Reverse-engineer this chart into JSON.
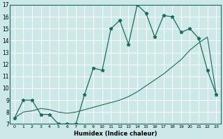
{
  "title": "",
  "xlabel": "Humidex (Indice chaleur)",
  "bg_color": "#cce8e8",
  "grid_color": "#ffffff",
  "line_color": "#1a6b5a",
  "xlim": [
    -0.5,
    23.5
  ],
  "ylim": [
    7,
    17
  ],
  "xticks": [
    0,
    1,
    2,
    3,
    4,
    5,
    6,
    7,
    8,
    9,
    10,
    11,
    12,
    13,
    14,
    15,
    16,
    17,
    18,
    19,
    20,
    21,
    22,
    23
  ],
  "yticks": [
    7,
    8,
    9,
    10,
    11,
    12,
    13,
    14,
    15,
    16,
    17
  ],
  "line1_x": [
    0,
    1,
    2,
    3,
    4,
    5,
    6,
    7,
    8,
    9,
    10,
    11,
    12,
    13,
    14,
    15,
    16,
    17,
    18,
    19,
    20,
    21,
    22,
    23
  ],
  "line1_y": [
    7.5,
    9.0,
    9.0,
    7.8,
    7.8,
    7.0,
    7.0,
    7.0,
    9.5,
    11.7,
    11.5,
    15.0,
    15.7,
    13.7,
    17.0,
    16.3,
    14.3,
    16.1,
    16.0,
    14.7,
    15.0,
    14.2,
    11.5,
    9.5
  ],
  "line2_x": [
    0,
    1,
    2,
    3,
    4,
    5,
    6,
    7,
    8,
    9,
    10,
    11,
    12,
    13,
    14,
    15,
    16,
    17,
    18,
    19,
    20,
    21,
    22,
    23
  ],
  "line2_y": [
    7.5,
    8.0,
    8.1,
    8.3,
    8.2,
    8.0,
    7.9,
    8.0,
    8.2,
    8.4,
    8.6,
    8.8,
    9.0,
    9.3,
    9.7,
    10.2,
    10.7,
    11.2,
    11.8,
    12.4,
    13.2,
    13.8,
    14.3,
    9.5
  ]
}
